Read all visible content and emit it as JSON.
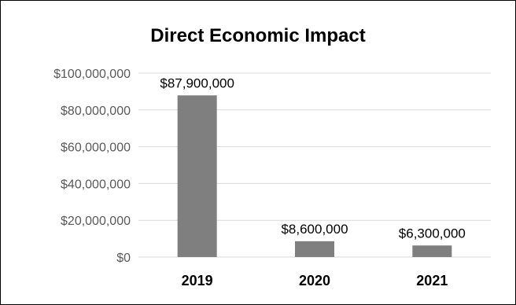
{
  "chart_data": {
    "type": "bar",
    "title": "Direct Economic Impact",
    "xlabel": "",
    "ylabel": "",
    "categories": [
      "2019",
      "2020",
      "2021"
    ],
    "values": [
      87900000,
      8600000,
      6300000
    ],
    "data_labels": [
      "$87,900,000",
      "$8,600,000",
      "$6,300,000"
    ],
    "yticks": [
      0,
      20000000,
      40000000,
      60000000,
      80000000,
      100000000
    ],
    "ytick_labels": [
      "$0",
      "$20,000,000",
      "$40,000,000",
      "$60,000,000",
      "$80,000,000",
      "$100,000,000"
    ],
    "ylim": [
      0,
      100000000
    ],
    "grid": true,
    "legend": "none",
    "colors": {
      "bar": "#7f7f7f",
      "gridline": "#d9d9d9",
      "border": "#000000"
    }
  }
}
